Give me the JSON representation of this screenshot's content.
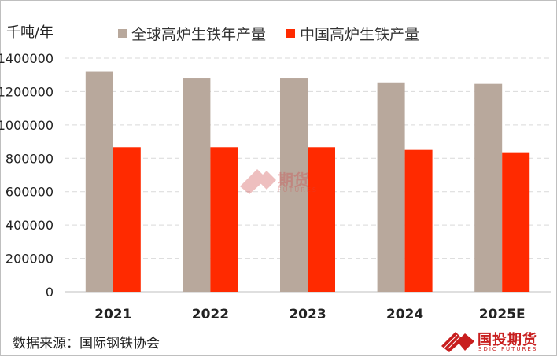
{
  "unit_label": "千吨/年",
  "source": "数据来源：国际钢铁协会",
  "logo": {
    "text": "国投期货",
    "subtext": "SDIC FUTURES"
  },
  "watermark": {
    "text": "期货",
    "subtext": "FUTURES"
  },
  "colors": {
    "global": "#b8a89c",
    "china": "#ff2a00",
    "grid": "#d9d9d9",
    "brand": "#c81e1e"
  },
  "chart_data": {
    "type": "bar",
    "categories": [
      "2021",
      "2022",
      "2023",
      "2024",
      "2025E"
    ],
    "series": [
      {
        "name": "全球高炉生铁年产量",
        "values": [
          1322000,
          1282000,
          1282000,
          1255000,
          1246000
        ]
      },
      {
        "name": "中国高炉生铁产量",
        "values": [
          866000,
          866000,
          866000,
          850000,
          836000
        ]
      }
    ],
    "ylim": [
      0,
      1400000
    ],
    "yticks": [
      "0",
      "200000",
      "400000",
      "600000",
      "800000",
      "1000000",
      "1200000",
      "1400000"
    ],
    "grid": true,
    "legend_position": "top"
  }
}
